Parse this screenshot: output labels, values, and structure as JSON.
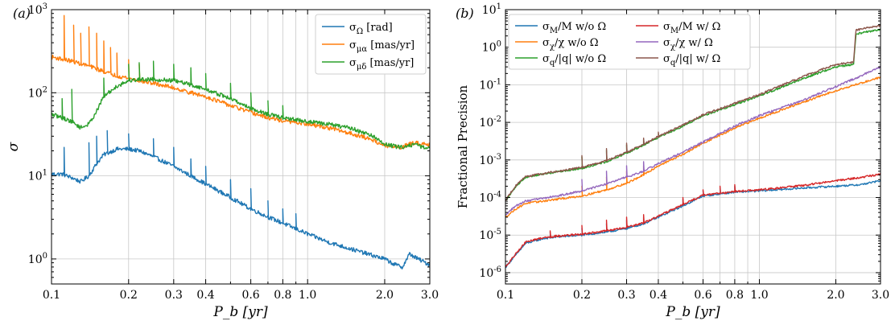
{
  "figure": {
    "panels": [
      {
        "panel_label": "(a)",
        "chart_data": {
          "type": "line",
          "title": "",
          "xlabel": "P_b [yr]",
          "ylabel": "σ",
          "xscale": "log",
          "yscale": "log",
          "xlim": [
            0.1,
            3.0
          ],
          "ylim": [
            0.5,
            1000
          ],
          "xticks": [
            0.1,
            0.2,
            0.3,
            0.4,
            0.6,
            0.8,
            1.0,
            2.0,
            3.0
          ],
          "xtick_labels": [
            "0.1",
            "0.2",
            "0.3",
            "0.4",
            "0.6",
            "0.8",
            "1.0",
            "2.0",
            "3.0"
          ],
          "yticks": [
            1,
            10,
            100,
            1000
          ],
          "ytick_labels": [
            "10^0",
            "10^1",
            "10^2",
            "10^3"
          ],
          "grid": true,
          "legend_position": "top-right",
          "legend_columns": 1,
          "series": [
            {
              "name": "σ_Ω [rad]",
              "color": "#1f77b4",
              "x": [
                0.1,
                0.11,
                0.12,
                0.13,
                0.14,
                0.15,
                0.16,
                0.18,
                0.2,
                0.22,
                0.25,
                0.3,
                0.35,
                0.4,
                0.5,
                0.6,
                0.7,
                0.8,
                1.0,
                1.2,
                1.5,
                1.8,
                2.0,
                2.2,
                2.35,
                2.5,
                2.7,
                3.0
              ],
              "y": [
                10.5,
                10.5,
                9.5,
                8.5,
                10,
                14,
                18,
                21,
                21,
                20,
                17,
                13,
                10,
                8,
                5.5,
                4,
                3.2,
                2.7,
                2.0,
                1.6,
                1.3,
                1.1,
                1.0,
                0.85,
                0.8,
                1.15,
                1.0,
                0.85
              ],
              "spikes": [
                [
                  0.112,
                  22
                ],
                [
                  0.14,
                  25
                ],
                [
                  0.15,
                  30
                ],
                [
                  0.165,
                  35
                ],
                [
                  0.2,
                  32
                ],
                [
                  0.25,
                  28
                ],
                [
                  0.3,
                  22
                ],
                [
                  0.35,
                  16
                ],
                [
                  0.4,
                  13
                ],
                [
                  0.5,
                  9
                ],
                [
                  0.6,
                  7
                ],
                [
                  0.7,
                  5
                ],
                [
                  0.8,
                  4
                ],
                [
                  0.9,
                  3.5
                ]
              ]
            },
            {
              "name": "σ_{μα} [mas/yr]",
              "color": "#ff7f0e",
              "x": [
                0.1,
                0.12,
                0.14,
                0.16,
                0.18,
                0.2,
                0.22,
                0.25,
                0.3,
                0.35,
                0.4,
                0.5,
                0.6,
                0.7,
                0.8,
                1.0,
                1.2,
                1.5,
                1.8,
                2.0,
                2.3,
                2.6,
                3.0
              ],
              "y": [
                270,
                240,
                210,
                180,
                160,
                150,
                140,
                130,
                115,
                100,
                90,
                70,
                58,
                50,
                46,
                42,
                38,
                32,
                27,
                23,
                22,
                25,
                24
              ],
              "spikes": [
                [
                  0.112,
                  850
                ],
                [
                  0.122,
                  650
                ],
                [
                  0.13,
                  520
                ],
                [
                  0.14,
                  620
                ],
                [
                  0.15,
                  520
                ],
                [
                  0.16,
                  420
                ],
                [
                  0.17,
                  350
                ],
                [
                  0.18,
                  300
                ],
                [
                  0.2,
                  250
                ],
                [
                  0.22,
                  220
                ]
              ]
            },
            {
              "name": "σ_{μδ} [mas/yr]",
              "color": "#2ca02c",
              "x": [
                0.1,
                0.11,
                0.12,
                0.13,
                0.14,
                0.15,
                0.16,
                0.18,
                0.2,
                0.22,
                0.25,
                0.3,
                0.35,
                0.4,
                0.5,
                0.6,
                0.7,
                0.8,
                1.0,
                1.2,
                1.5,
                1.8,
                2.0,
                2.3,
                2.6,
                3.0
              ],
              "y": [
                55,
                50,
                45,
                38,
                42,
                60,
                90,
                120,
                140,
                145,
                145,
                140,
                125,
                110,
                85,
                65,
                55,
                50,
                45,
                42,
                37,
                30,
                24,
                22,
                24,
                21
              ],
              "spikes": [
                [
                  0.11,
                  85
                ],
                [
                  0.12,
                  110
                ],
                [
                  0.16,
                  150
                ],
                [
                  0.2,
                  220
                ],
                [
                  0.22,
                  230
                ],
                [
                  0.25,
                  240
                ],
                [
                  0.3,
                  220
                ],
                [
                  0.35,
                  200
                ],
                [
                  0.4,
                  170
                ],
                [
                  0.5,
                  130
                ],
                [
                  0.6,
                  100
                ],
                [
                  0.7,
                  80
                ],
                [
                  0.8,
                  70
                ]
              ]
            }
          ]
        }
      },
      {
        "panel_label": "(b)",
        "chart_data": {
          "type": "line",
          "title": "",
          "xlabel": "P_b [yr]",
          "ylabel": "Fractional Precision",
          "xscale": "log",
          "yscale": "log",
          "xlim": [
            0.1,
            3.0
          ],
          "ylim": [
            5e-07,
            10
          ],
          "xticks": [
            0.1,
            0.2,
            0.3,
            0.4,
            0.6,
            0.8,
            1.0,
            2.0,
            3.0
          ],
          "xtick_labels": [
            "0.1",
            "0.2",
            "0.3",
            "0.4",
            "0.6",
            "0.8",
            "1.0",
            "2.0",
            "3.0"
          ],
          "yticks": [
            1e-06,
            1e-05,
            0.0001,
            0.001,
            0.01,
            0.1,
            1,
            10
          ],
          "ytick_labels": [
            "10^-6",
            "10^-5",
            "10^-4",
            "10^-3",
            "10^-2",
            "10^-1",
            "10^0",
            "10^1"
          ],
          "grid": true,
          "legend_position": "top-left",
          "legend_columns": 2,
          "series": [
            {
              "name": "σ_M/M w/o Ω",
              "color": "#1f77b4",
              "x": [
                0.1,
                0.11,
                0.12,
                0.14,
                0.16,
                0.2,
                0.25,
                0.3,
                0.35,
                0.4,
                0.5,
                0.6,
                0.8,
                1.0,
                1.5,
                2.0,
                2.5,
                3.0
              ],
              "y": [
                1.4e-06,
                3e-06,
                6e-06,
                8e-06,
                9e-06,
                1e-05,
                1.2e-05,
                1.5e-05,
                2e-05,
                3e-05,
                6e-05,
                0.00011,
                0.00014,
                0.00015,
                0.00018,
                0.0002,
                0.00022,
                0.00028
              ],
              "spikes": [
                [
                  0.15,
                  1.2e-05
                ],
                [
                  0.2,
                  1.5e-05
                ],
                [
                  0.25,
                  2e-05
                ],
                [
                  0.3,
                  2.5e-05
                ],
                [
                  0.35,
                  3e-05
                ],
                [
                  0.5,
                  9e-05
                ],
                [
                  0.6,
                  0.00015
                ],
                [
                  0.7,
                  0.00018
                ],
                [
                  0.8,
                  0.0002
                ]
              ]
            },
            {
              "name": "σ_χ/χ w/o Ω",
              "color": "#ff7f0e",
              "x": [
                0.1,
                0.11,
                0.12,
                0.14,
                0.16,
                0.2,
                0.25,
                0.3,
                0.35,
                0.4,
                0.5,
                0.6,
                0.8,
                1.0,
                1.5,
                2.0,
                2.5,
                3.0
              ],
              "y": [
                3e-05,
                5e-05,
                7e-05,
                8e-05,
                9e-05,
                0.00011,
                0.00016,
                0.00024,
                0.0004,
                0.0007,
                0.0014,
                0.0028,
                0.007,
                0.013,
                0.035,
                0.07,
                0.11,
                0.16
              ],
              "spikes": [
                [
                  0.2,
                  0.0002
                ],
                [
                  0.25,
                  0.00035
                ],
                [
                  0.3,
                  0.0005
                ],
                [
                  0.35,
                  0.0007
                ]
              ]
            },
            {
              "name": "σ_q/|q| w/o Ω",
              "color": "#2ca02c",
              "x": [
                0.1,
                0.11,
                0.12,
                0.14,
                0.16,
                0.2,
                0.25,
                0.3,
                0.35,
                0.4,
                0.5,
                0.6,
                0.8,
                1.0,
                1.5,
                2.0,
                2.35,
                2.4,
                2.6,
                3.0
              ],
              "y": [
                8e-05,
                0.0002,
                0.00035,
                0.00042,
                0.00048,
                0.0006,
                0.0009,
                0.0015,
                0.0025,
                0.004,
                0.008,
                0.015,
                0.03,
                0.05,
                0.15,
                0.3,
                0.35,
                2.2,
                2.5,
                3.0
              ],
              "spikes": [
                [
                  0.2,
                  0.0012
                ],
                [
                  0.25,
                  0.0018
                ],
                [
                  0.3,
                  0.0025
                ],
                [
                  0.35,
                  0.0035
                ],
                [
                  0.4,
                  0.005
                ]
              ]
            },
            {
              "name": "σ_M/M w/ Ω",
              "color": "#d62728",
              "x": [
                0.1,
                0.11,
                0.12,
                0.14,
                0.16,
                0.2,
                0.25,
                0.3,
                0.35,
                0.4,
                0.5,
                0.6,
                0.8,
                1.0,
                1.5,
                2.0,
                2.5,
                3.0
              ],
              "y": [
                1.4e-06,
                3.2e-06,
                6.5e-06,
                8.5e-06,
                9.5e-06,
                1.05e-05,
                1.3e-05,
                1.6e-05,
                2.1e-05,
                3.2e-05,
                6.5e-05,
                0.000115,
                0.000145,
                0.00016,
                0.00021,
                0.00028,
                0.00034,
                0.00042
              ],
              "spikes": [
                [
                  0.15,
                  1.3e-05
                ],
                [
                  0.2,
                  1.8e-05
                ],
                [
                  0.25,
                  2.5e-05
                ],
                [
                  0.3,
                  3e-05
                ],
                [
                  0.35,
                  3.5e-05
                ],
                [
                  0.5,
                  0.0001
                ],
                [
                  0.6,
                  0.00016
                ],
                [
                  0.7,
                  0.0002
                ],
                [
                  0.8,
                  0.00022
                ]
              ]
            },
            {
              "name": "σ_χ/χ w/ Ω",
              "color": "#9467bd",
              "x": [
                0.1,
                0.11,
                0.12,
                0.14,
                0.16,
                0.2,
                0.25,
                0.3,
                0.35,
                0.4,
                0.5,
                0.6,
                0.8,
                1.0,
                1.5,
                2.0,
                2.5,
                3.0
              ],
              "y": [
                3.5e-05,
                6e-05,
                8e-05,
                9.5e-05,
                0.00011,
                0.00015,
                0.00023,
                0.00035,
                0.0005,
                0.0008,
                0.0016,
                0.003,
                0.008,
                0.015,
                0.04,
                0.09,
                0.17,
                0.3
              ],
              "spikes": [
                [
                  0.2,
                  0.0003
                ],
                [
                  0.25,
                  0.0005
                ],
                [
                  0.3,
                  0.0007
                ],
                [
                  0.35,
                  0.0009
                ]
              ]
            },
            {
              "name": "σ_q/|q| w/ Ω",
              "color": "#8c564b",
              "x": [
                0.1,
                0.11,
                0.12,
                0.14,
                0.16,
                0.2,
                0.25,
                0.3,
                0.35,
                0.4,
                0.5,
                0.6,
                0.8,
                1.0,
                1.5,
                2.0,
                2.35,
                2.4,
                2.6,
                3.0
              ],
              "y": [
                8.5e-05,
                0.00021,
                0.00036,
                0.00043,
                0.0005,
                0.00063,
                0.00095,
                0.0016,
                0.0026,
                0.0042,
                0.0085,
                0.016,
                0.032,
                0.055,
                0.17,
                0.35,
                0.4,
                2.8,
                3.2,
                3.8
              ],
              "spikes": [
                [
                  0.2,
                  0.0013
                ],
                [
                  0.25,
                  0.002
                ],
                [
                  0.3,
                  0.0028
                ],
                [
                  0.35,
                  0.0038
                ],
                [
                  0.4,
                  0.0055
                ]
              ]
            }
          ]
        }
      }
    ]
  }
}
